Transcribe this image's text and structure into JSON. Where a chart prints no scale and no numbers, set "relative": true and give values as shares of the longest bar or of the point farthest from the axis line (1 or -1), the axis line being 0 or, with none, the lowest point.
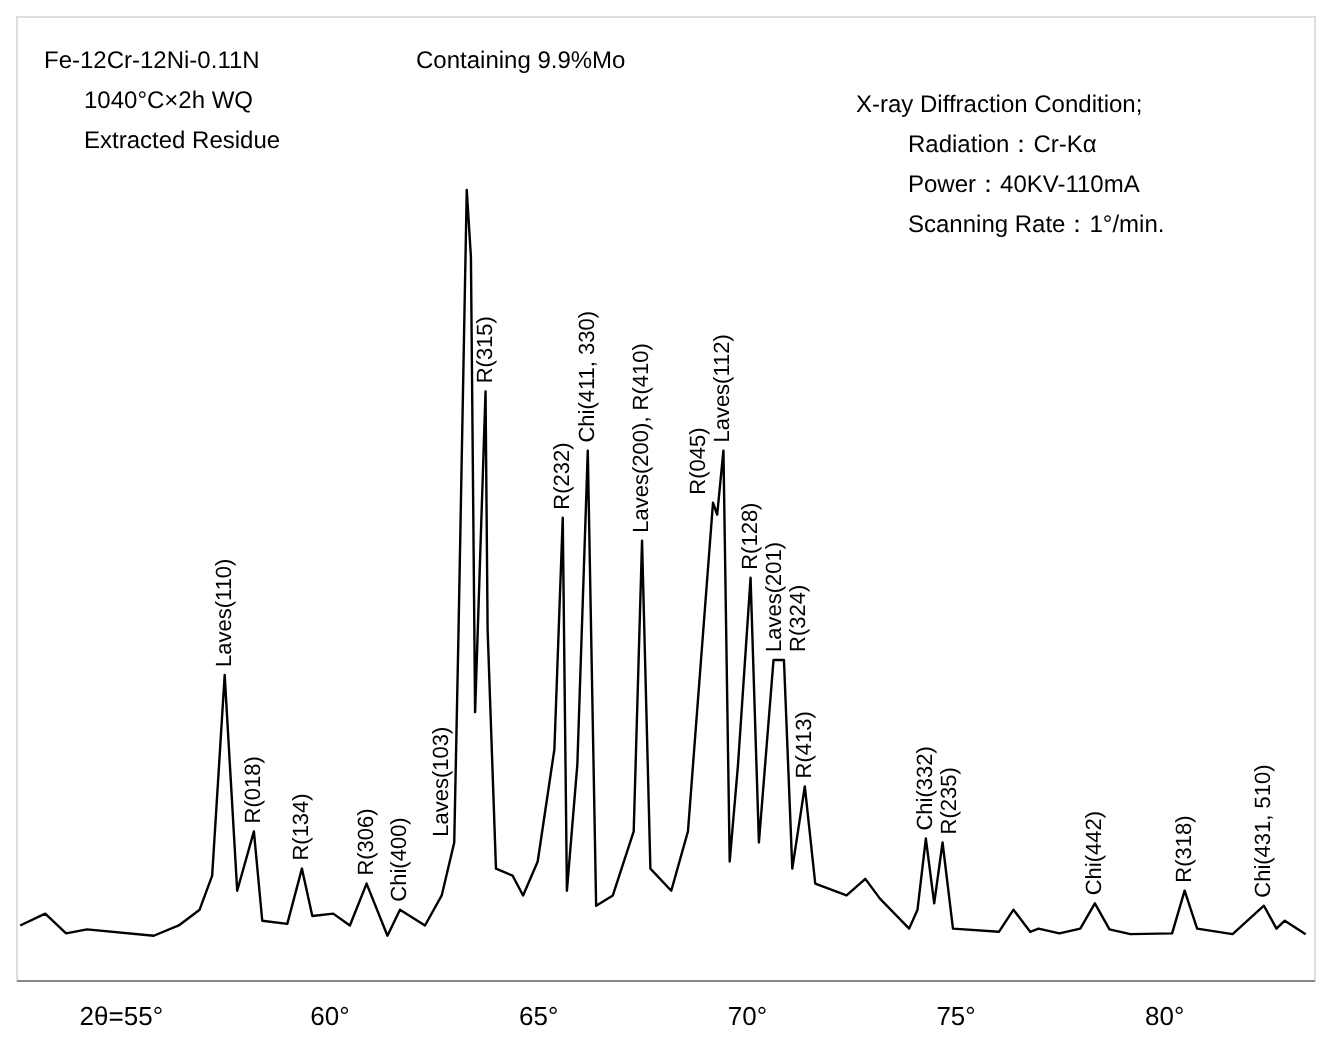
{
  "chart_data": {
    "type": "line",
    "relative": true,
    "grid": false,
    "x": [
      52.6,
      53.2,
      53.7,
      54.2,
      55.8,
      56.4,
      56.9,
      57.2,
      57.5,
      57.8,
      58.2,
      58.4,
      59.0,
      59.35,
      59.6,
      60.1,
      60.5,
      60.9,
      61.4,
      61.7,
      62.3,
      62.7,
      63.0,
      63.1,
      63.3,
      63.4,
      63.5,
      63.75,
      63.8,
      64.0,
      64.4,
      64.65,
      65.0,
      65.4,
      65.6,
      65.7,
      65.95,
      66.2,
      66.4,
      66.8,
      67.3,
      67.5,
      67.7,
      68.2,
      68.6,
      69.2,
      69.3,
      69.45,
      69.6,
      69.8,
      70.1,
      70.3,
      70.65,
      70.9,
      71.1,
      71.4,
      71.65,
      72.4,
      72.85,
      73.2,
      73.9,
      74.1,
      74.3,
      74.5,
      74.7,
      74.95,
      76.05,
      76.4,
      76.8,
      77.0,
      77.5,
      78.0,
      78.35,
      78.7,
      79.2,
      80.2,
      80.5,
      80.8,
      81.65,
      82.4,
      82.7,
      82.9,
      83.4
    ],
    "series": [
      {
        "color": "#000000",
        "values": [
          0.069,
          0.084,
          0.059,
          0.064,
          0.056,
          0.069,
          0.089,
          0.132,
          0.386,
          0.113,
          0.188,
          0.075,
          0.071,
          0.141,
          0.081,
          0.084,
          0.069,
          0.122,
          0.056,
          0.089,
          0.069,
          0.107,
          0.174,
          0.434,
          1.0,
          0.915,
          0.339,
          0.745,
          0.443,
          0.141,
          0.132,
          0.107,
          0.15,
          0.292,
          0.585,
          0.113,
          0.273,
          0.67,
          0.094,
          0.107,
          0.188,
          0.556,
          0.141,
          0.113,
          0.188,
          0.604,
          0.589,
          0.67,
          0.15,
          0.273,
          0.509,
          0.174,
          0.405,
          0.405,
          0.141,
          0.245,
          0.122,
          0.107,
          0.128,
          0.103,
          0.065,
          0.089,
          0.179,
          0.097,
          0.174,
          0.065,
          0.061,
          0.089,
          0.061,
          0.065,
          0.059,
          0.065,
          0.097,
          0.064,
          0.058,
          0.059,
          0.113,
          0.065,
          0.058,
          0.094,
          0.065,
          0.075,
          0.058
        ]
      }
    ],
    "xlim": [
      52.5,
      83.6
    ],
    "xticks": [
      {
        "value": 55,
        "label": "2θ=55°"
      },
      {
        "value": 60,
        "label": "60°"
      },
      {
        "value": 65,
        "label": "65°"
      },
      {
        "value": 70,
        "label": "70°"
      },
      {
        "value": 75,
        "label": "75°"
      },
      {
        "value": 80,
        "label": "80°"
      }
    ],
    "annotations": [
      "Fe-12Cr-12Ni-0.11N",
      "1040°C×2h WQ",
      "Extracted Residue",
      "Containing 9.9%Mo",
      "X-ray Diffraction Condition;",
      "Radiation：Cr-Kα",
      "Power：40KV-110mA",
      "Scanning Rate：1°/min.",
      {
        "text": "Laves(110)",
        "x": 57.5,
        "y": 0.386
      },
      {
        "text": "R(018)",
        "x": 58.2,
        "y": 0.188
      },
      {
        "text": "R(134)",
        "x": 59.35,
        "y": 0.141
      },
      {
        "text": "R(306)",
        "x": 60.9,
        "y": 0.122
      },
      {
        "text": "Chi(400)",
        "x": 61.7,
        "y": 0.089
      },
      {
        "text": "Laves(103)",
        "x": 62.7,
        "y": 0.107
      },
      {
        "text": "R(315)",
        "x": 63.75,
        "y": 0.745
      },
      {
        "text": "R(232)",
        "x": 65.6,
        "y": 0.585
      },
      {
        "text": "Chi(411, 330)",
        "x": 66.2,
        "y": 0.67
      },
      {
        "text": "Laves(200), R(410)",
        "x": 67.5,
        "y": 0.556
      },
      {
        "text": "R(045)",
        "x": 69.2,
        "y": 0.604
      },
      {
        "text": "Laves(112)",
        "x": 69.45,
        "y": 0.67
      },
      {
        "text": "R(128)",
        "x": 70.1,
        "y": 0.509
      },
      {
        "text": "Laves(201)",
        "x": 70.65,
        "y": 0.405
      },
      {
        "text": "R(324)",
        "x": 70.9,
        "y": 0.405
      },
      {
        "text": "R(413)",
        "x": 71.4,
        "y": 0.245
      },
      {
        "text": "Chi(332)",
        "x": 74.3,
        "y": 0.179
      },
      {
        "text": "R(235)",
        "x": 74.7,
        "y": 0.174
      },
      {
        "text": "Chi(442)",
        "x": 78.35,
        "y": 0.097
      },
      {
        "text": "R(318)",
        "x": 80.5,
        "y": 0.113
      },
      {
        "text": "Chi(431, 510)",
        "x": 82.4,
        "y": 0.094
      }
    ]
  }
}
